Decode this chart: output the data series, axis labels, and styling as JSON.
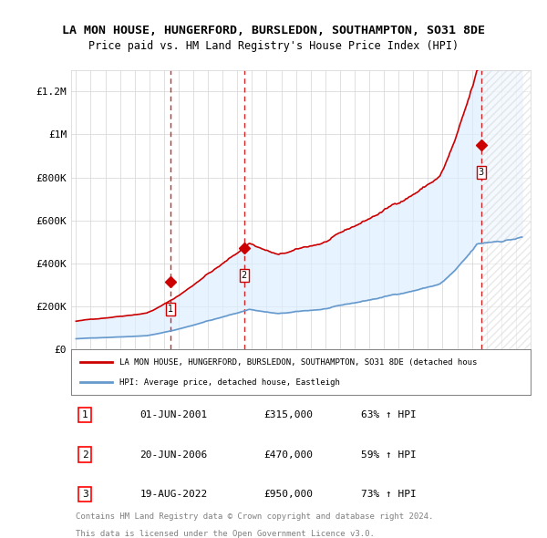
{
  "title": "LA MON HOUSE, HUNGERFORD, BURSLEDON, SOUTHAMPTON, SO31 8DE",
  "subtitle": "Price paid vs. HM Land Registry's House Price Index (HPI)",
  "xlabel": "",
  "ylabel": "",
  "ylim": [
    0,
    1300000
  ],
  "yticks": [
    0,
    200000,
    400000,
    600000,
    800000,
    1000000,
    1200000
  ],
  "ytick_labels": [
    "£0",
    "£200K",
    "£400K",
    "£600K",
    "£800K",
    "£1M",
    "£1.2M"
  ],
  "x_start_year": 1995,
  "x_end_year": 2026,
  "sale_dates": [
    "2001-06-01",
    "2006-06-20",
    "2022-08-19"
  ],
  "sale_prices": [
    315000,
    470000,
    950000
  ],
  "sale_labels": [
    "1",
    "2",
    "3"
  ],
  "hpi_color": "#6699cc",
  "price_color": "#cc0000",
  "sale_marker_color": "#cc0000",
  "dashed_line_color": "#cc0000",
  "shade_color": "#ddeeff",
  "legend_entries": [
    "LA MON HOUSE, HUNGERFORD, BURSLEDON, SOUTHAMPTON, SO31 8DE (detached hous",
    "HPI: Average price, detached house, Eastleigh"
  ],
  "table_rows": [
    {
      "num": "1",
      "date": "01-JUN-2001",
      "price": "£315,000",
      "hpi": "63% ↑ HPI"
    },
    {
      "num": "2",
      "date": "20-JUN-2006",
      "price": "£470,000",
      "hpi": "59% ↑ HPI"
    },
    {
      "num": "3",
      "date": "19-AUG-2022",
      "price": "£950,000",
      "hpi": "73% ↑ HPI"
    }
  ],
  "footnote1": "Contains HM Land Registry data © Crown copyright and database right 2024.",
  "footnote2": "This data is licensed under the Open Government Licence v3.0.",
  "background_plot": "#f0f4fa",
  "background_fig": "#ffffff"
}
